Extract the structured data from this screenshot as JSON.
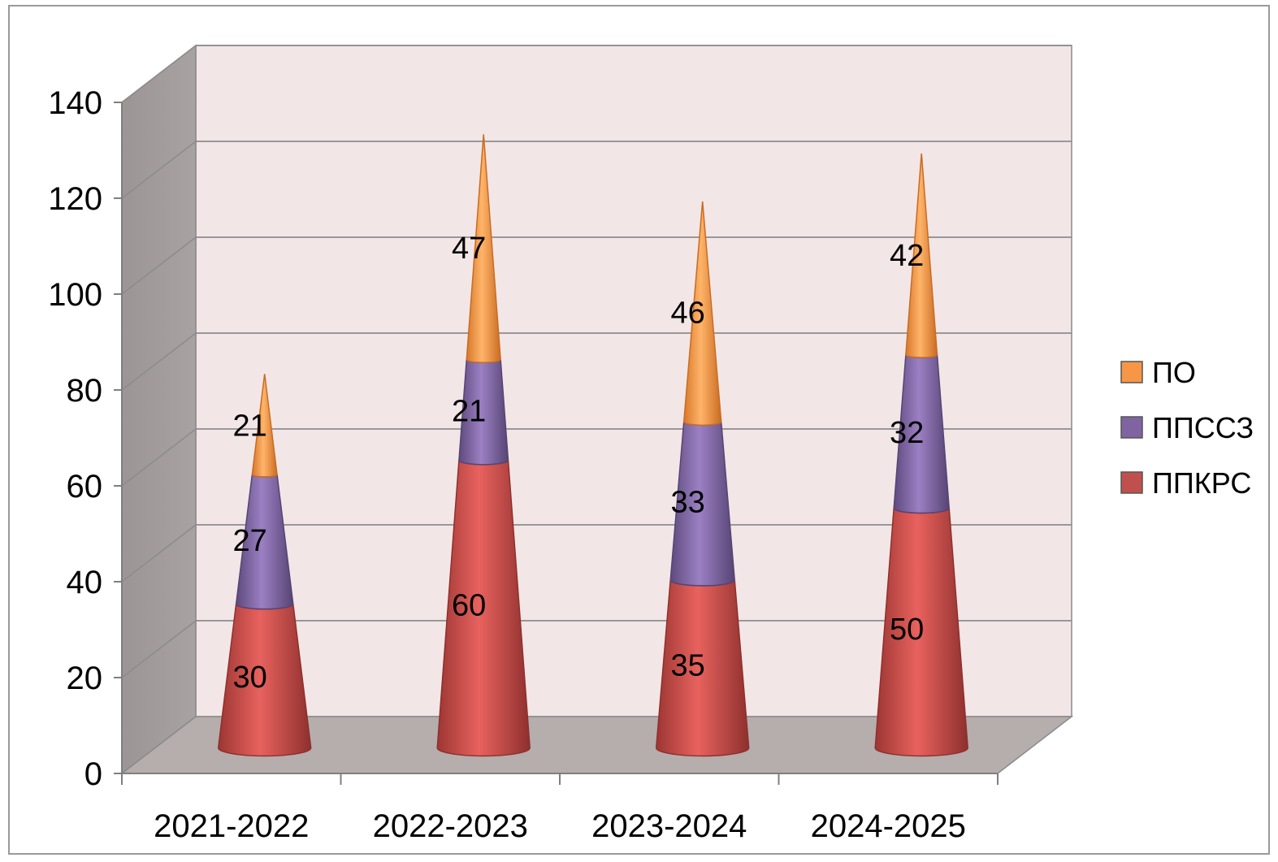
{
  "chart_data": {
    "type": "bar",
    "subtype": "stacked-3d-cone",
    "title": "",
    "xlabel": "",
    "ylabel": "",
    "categories": [
      "2021-2022",
      "2022-2023",
      "2023-2024",
      "2024-2025"
    ],
    "ylim": [
      0,
      140
    ],
    "yticks": [
      0,
      20,
      40,
      60,
      80,
      100,
      120,
      140
    ],
    "grid": true,
    "legend_position": "right",
    "series": [
      {
        "name": "ППКРС",
        "values": [
          30,
          60,
          35,
          50
        ],
        "color": "#c0504d"
      },
      {
        "name": "ППССЗ",
        "values": [
          27,
          21,
          33,
          32
        ],
        "color": "#8064a2"
      },
      {
        "name": "ПО",
        "values": [
          21,
          47,
          46,
          42
        ],
        "color": "#f79646"
      }
    ],
    "legend_order": [
      "ПО",
      "ППССЗ",
      "ППКРС"
    ]
  }
}
